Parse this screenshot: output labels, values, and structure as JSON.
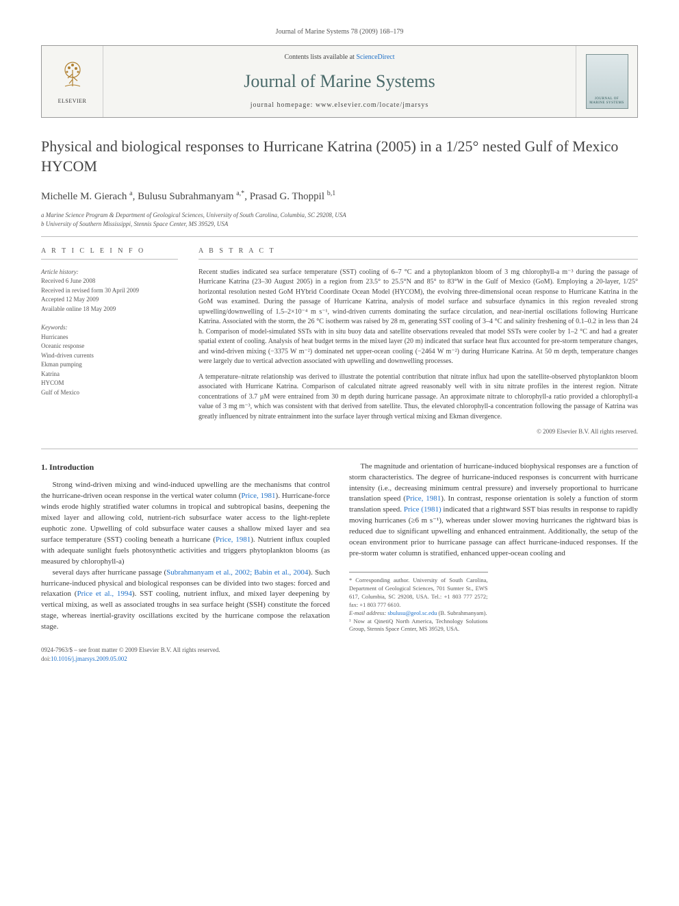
{
  "header": {
    "running_head": "Journal of Marine Systems 78 (2009) 168–179",
    "contents_prefix": "Contents lists available at ",
    "contents_link": "ScienceDirect",
    "journal_title": "Journal of Marine Systems",
    "homepage_prefix": "journal homepage: ",
    "homepage_url": "www.elsevier.com/locate/jmarsys",
    "publisher_label": "ELSEVIER",
    "cover_text": "JOURNAL OF MARINE SYSTEMS"
  },
  "article": {
    "title": "Physical and biological responses to Hurricane Katrina (2005) in a 1/25° nested Gulf of Mexico HYCOM",
    "authors_html": "Michelle M. Gierach <sup>a</sup>, Bulusu Subrahmanyam <sup>a,*</sup>, Prasad G. Thoppil <sup>b,1</sup>",
    "affiliations": [
      "a Marine Science Program & Department of Geological Sciences, University of South Carolina, Columbia, SC 29208, USA",
      "b University of Southern Mississippi, Stennis Space Center, MS 39529, USA"
    ]
  },
  "info": {
    "label": "A R T I C L E   I N F O",
    "history_hdr": "Article history:",
    "history": [
      "Received 6 June 2008",
      "Received in revised form 30 April 2009",
      "Accepted 12 May 2009",
      "Available online 18 May 2009"
    ],
    "keywords_hdr": "Keywords:",
    "keywords": [
      "Hurricanes",
      "Oceanic response",
      "Wind-driven currents",
      "Ekman pumping",
      "Katrina",
      "HYCOM",
      "Gulf of Mexico"
    ]
  },
  "abstract": {
    "label": "A B S T R A C T",
    "paragraphs": [
      "Recent studies indicated sea surface temperature (SST) cooling of 6–7 °C and a phytoplankton bloom of 3 mg chlorophyll-a m⁻³ during the passage of Hurricane Katrina (23–30 August 2005) in a region from 23.5° to 25.5°N and 85° to 83°W in the Gulf of Mexico (GoM). Employing a 20-layer, 1/25° horizontal resolution nested GoM HYbrid Coordinate Ocean Model (HYCOM), the evolving three-dimensional ocean response to Hurricane Katrina in the GoM was examined. During the passage of Hurricane Katrina, analysis of model surface and subsurface dynamics in this region revealed strong upwelling/downwelling of 1.5–2×10⁻⁴ m s⁻¹, wind-driven currents dominating the surface circulation, and near-inertial oscillations following Hurricane Katrina. Associated with the storm, the 26 °C isotherm was raised by 28 m, generating SST cooling of 3–4 °C and salinity freshening of 0.1–0.2 in less than 24 h. Comparison of model-simulated SSTs with in situ buoy data and satellite observations revealed that model SSTs were cooler by 1–2 °C and had a greater spatial extent of cooling. Analysis of heat budget terms in the mixed layer (20 m) indicated that surface heat flux accounted for pre-storm temperature changes, and wind-driven mixing (−3375 W m⁻²) dominated net upper-ocean cooling (−2464 W m⁻²) during Hurricane Katrina. At 50 m depth, temperature changes were largely due to vertical advection associated with upwelling and downwelling processes.",
      "A temperature–nitrate relationship was derived to illustrate the potential contribution that nitrate influx had upon the satellite-observed phytoplankton bloom associated with Hurricane Katrina. Comparison of calculated nitrate agreed reasonably well with in situ nitrate profiles in the interest region. Nitrate concentrations of 3.7 µM were entrained from 30 m depth during hurricane passage. An approximate nitrate to chlorophyll-a ratio provided a chlorophyll-a value of 3 mg m⁻³, which was consistent with that derived from satellite. Thus, the elevated chlorophyll-a concentration following the passage of Katrina was greatly influenced by nitrate entrainment into the surface layer through vertical mixing and Ekman divergence."
    ],
    "copyright": "© 2009 Elsevier B.V. All rights reserved."
  },
  "body": {
    "section_number": "1.",
    "section_title": "Introduction",
    "paragraphs": [
      "Strong wind-driven mixing and wind-induced upwelling are the mechanisms that control the hurricane-driven ocean response in the vertical water column (<a href='#'>Price, 1981</a>). Hurricane-force winds erode highly stratified water columns in tropical and subtropical basins, deepening the mixed layer and allowing cold, nutrient-rich subsurface water access to the light-replete euphotic zone. Upwelling of cold subsurface water causes a shallow mixed layer and sea surface temperature (SST) cooling beneath a hurricane (<a href='#'>Price, 1981</a>). Nutrient influx coupled with adequate sunlight fuels photosynthetic activities and triggers phytoplankton blooms (as measured by chlorophyll-a)",
      "several days after hurricane passage (<a href='#'>Subrahmanyam et al., 2002; Babin et al., 2004</a>). Such hurricane-induced physical and biological responses can be divided into two stages: forced and relaxation (<a href='#'>Price et al., 1994</a>). SST cooling, nutrient influx, and mixed layer deepening by vertical mixing, as well as associated troughs in sea surface height (SSH) constitute the forced stage, whereas inertial-gravity oscillations excited by the hurricane compose the relaxation stage.",
      "The magnitude and orientation of hurricane-induced biophysical responses are a function of storm characteristics. The degree of hurricane-induced responses is concurrent with hurricane intensity (i.e., decreasing minimum central pressure) and inversely proportional to hurricane translation speed (<a href='#'>Price, 1981</a>). In contrast, response orientation is solely a function of storm translation speed. <a href='#'>Price (1981)</a> indicated that a rightward SST bias results in response to rapidly moving hurricanes (≥6 m s⁻¹), whereas under slower moving hurricanes the rightward bias is reduced due to significant upwelling and enhanced entrainment. Additionally, the setup of the ocean environment prior to hurricane passage can affect hurricane-induced responses. If the pre-storm water column is stratified, enhanced upper-ocean cooling and"
    ]
  },
  "footnotes": {
    "corr": "* Corresponding author. University of South Carolina, Department of Geological Sciences, 701 Sumter St., EWS 617, Columbia, SC 29208, USA. Tel.: +1 803 777 2572; fax: +1 803 777 6610.",
    "email_label": "E-mail address: ",
    "email": "sbulusu@geol.sc.edu",
    "email_suffix": " (B. Subrahmanyam).",
    "note1": "¹ Now at QinetiQ North America, Technology Solutions Group, Stennis Space Center, MS 39529, USA."
  },
  "footer": {
    "line1": "0924-7963/$ – see front matter © 2009 Elsevier B.V. All rights reserved.",
    "doi_prefix": "doi:",
    "doi": "10.1016/j.jmarsys.2009.05.002"
  },
  "colors": {
    "link": "#1d6fc7",
    "journal_title": "#4a6a6a",
    "rule": "#bbbbbb"
  }
}
